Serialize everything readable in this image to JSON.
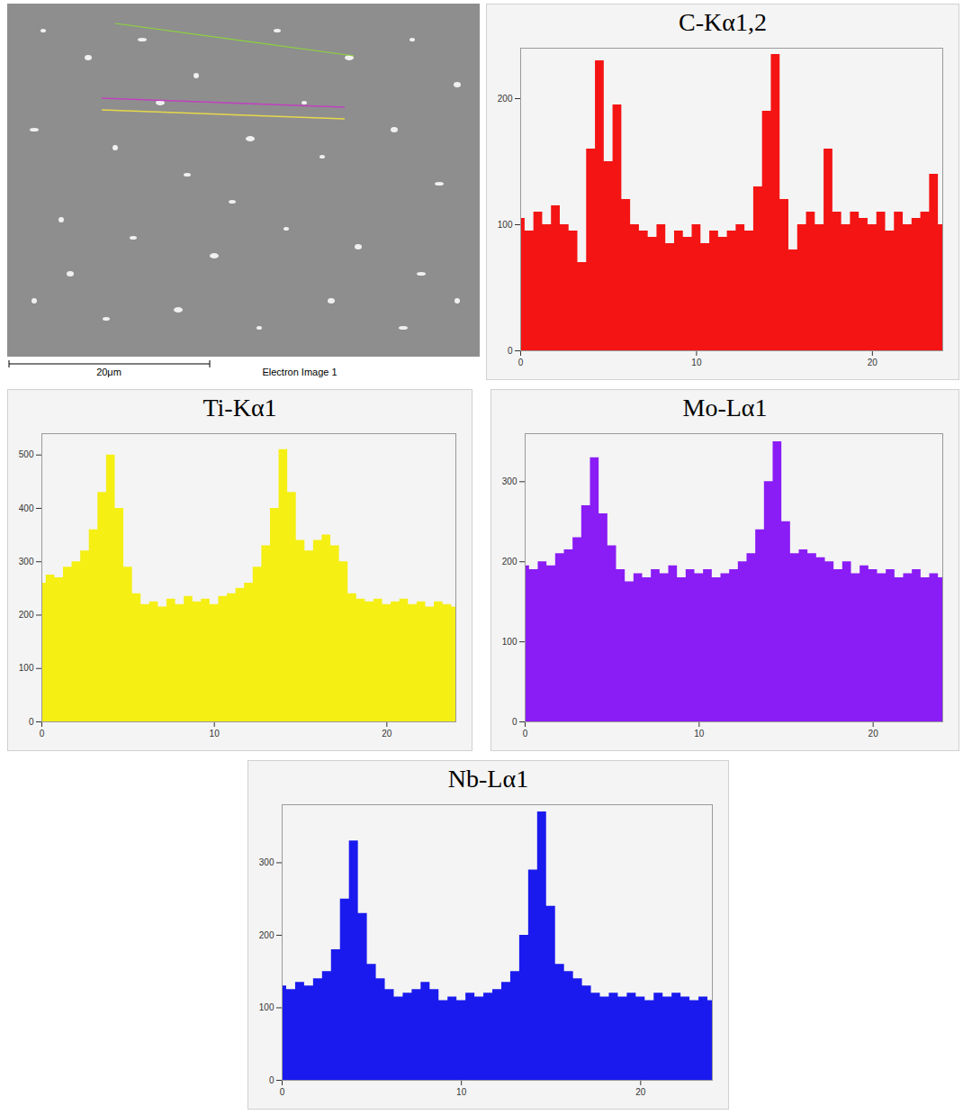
{
  "image": {
    "scale_bar": "20μm",
    "caption": "Electron Image 1"
  },
  "chart_data": [
    {
      "type": "area",
      "title": "C-Kα1,2",
      "color": "#f41414",
      "grid": false,
      "xlim": [
        0,
        24
      ],
      "xticks": [
        0,
        10,
        20
      ],
      "ylim": [
        0,
        240
      ],
      "yticks": [
        0,
        100,
        200
      ],
      "x": [
        0,
        0.5,
        1,
        1.5,
        2,
        2.5,
        3,
        3.5,
        4,
        4.5,
        5,
        5.5,
        6,
        6.5,
        7,
        7.5,
        8,
        8.5,
        9,
        9.5,
        10,
        10.5,
        11,
        11.5,
        12,
        12.5,
        13,
        13.5,
        14,
        14.5,
        15,
        15.5,
        16,
        16.5,
        17,
        17.5,
        18,
        18.5,
        19,
        19.5,
        20,
        20.5,
        21,
        21.5,
        22,
        22.5,
        23,
        23.5,
        24
      ],
      "values": [
        105,
        95,
        110,
        100,
        115,
        100,
        95,
        70,
        160,
        230,
        150,
        195,
        120,
        100,
        95,
        90,
        100,
        85,
        95,
        90,
        100,
        85,
        95,
        90,
        95,
        100,
        95,
        130,
        190,
        235,
        120,
        80,
        100,
        110,
        100,
        160,
        110,
        100,
        110,
        105,
        100,
        110,
        95,
        110,
        100,
        105,
        110,
        140,
        100
      ]
    },
    {
      "type": "area",
      "title": "Ti-Kα1",
      "color": "#f5ef14",
      "grid": false,
      "xlim": [
        0,
        24
      ],
      "xticks": [
        0,
        10,
        20
      ],
      "ylim": [
        0,
        540
      ],
      "yticks": [
        0,
        100,
        200,
        300,
        400,
        500
      ],
      "x": [
        0,
        0.5,
        1,
        1.5,
        2,
        2.5,
        3,
        3.5,
        4,
        4.5,
        5,
        5.5,
        6,
        6.5,
        7,
        7.5,
        8,
        8.5,
        9,
        9.5,
        10,
        10.5,
        11,
        11.5,
        12,
        12.5,
        13,
        13.5,
        14,
        14.5,
        15,
        15.5,
        16,
        16.5,
        17,
        17.5,
        18,
        18.5,
        19,
        19.5,
        20,
        20.5,
        21,
        21.5,
        22,
        22.5,
        23,
        23.5,
        24
      ],
      "values": [
        260,
        275,
        270,
        290,
        300,
        320,
        360,
        430,
        500,
        400,
        290,
        240,
        220,
        225,
        215,
        230,
        220,
        235,
        225,
        230,
        220,
        235,
        240,
        250,
        260,
        290,
        330,
        400,
        510,
        430,
        340,
        320,
        340,
        350,
        330,
        300,
        240,
        230,
        225,
        230,
        220,
        225,
        230,
        220,
        225,
        215,
        225,
        220,
        215
      ]
    },
    {
      "type": "area",
      "title": "Mo-Lα1",
      "color": "#8a1cf5",
      "grid": false,
      "xlim": [
        0,
        24
      ],
      "xticks": [
        0,
        10,
        20
      ],
      "ylim": [
        0,
        360
      ],
      "yticks": [
        0,
        100,
        200,
        300
      ],
      "x": [
        0,
        0.5,
        1,
        1.5,
        2,
        2.5,
        3,
        3.5,
        4,
        4.5,
        5,
        5.5,
        6,
        6.5,
        7,
        7.5,
        8,
        8.5,
        9,
        9.5,
        10,
        10.5,
        11,
        11.5,
        12,
        12.5,
        13,
        13.5,
        14,
        14.5,
        15,
        15.5,
        16,
        16.5,
        17,
        17.5,
        18,
        18.5,
        19,
        19.5,
        20,
        20.5,
        21,
        21.5,
        22,
        22.5,
        23,
        23.5,
        24
      ],
      "values": [
        195,
        190,
        200,
        195,
        210,
        215,
        230,
        270,
        330,
        260,
        220,
        190,
        175,
        185,
        180,
        190,
        185,
        195,
        180,
        190,
        185,
        190,
        180,
        185,
        190,
        200,
        210,
        240,
        300,
        350,
        250,
        210,
        215,
        210,
        205,
        200,
        190,
        200,
        185,
        195,
        190,
        185,
        190,
        180,
        185,
        190,
        180,
        185,
        180
      ]
    },
    {
      "type": "area",
      "title": "Nb-Lα1",
      "color": "#1a1aee",
      "grid": false,
      "xlim": [
        0,
        24
      ],
      "xticks": [
        0,
        10,
        20
      ],
      "ylim": [
        0,
        380
      ],
      "yticks": [
        0,
        100,
        200,
        300
      ],
      "x": [
        0,
        0.5,
        1,
        1.5,
        2,
        2.5,
        3,
        3.5,
        4,
        4.5,
        5,
        5.5,
        6,
        6.5,
        7,
        7.5,
        8,
        8.5,
        9,
        9.5,
        10,
        10.5,
        11,
        11.5,
        12,
        12.5,
        13,
        13.5,
        14,
        14.5,
        15,
        15.5,
        16,
        16.5,
        17,
        17.5,
        18,
        18.5,
        19,
        19.5,
        20,
        20.5,
        21,
        21.5,
        22,
        22.5,
        23,
        23.5,
        24
      ],
      "values": [
        130,
        125,
        135,
        130,
        140,
        150,
        180,
        250,
        330,
        230,
        160,
        140,
        125,
        115,
        120,
        125,
        135,
        125,
        110,
        115,
        110,
        120,
        115,
        120,
        125,
        135,
        150,
        200,
        290,
        370,
        240,
        160,
        150,
        140,
        130,
        120,
        115,
        120,
        115,
        120,
        115,
        110,
        120,
        115,
        120,
        115,
        110,
        115,
        110
      ]
    }
  ]
}
